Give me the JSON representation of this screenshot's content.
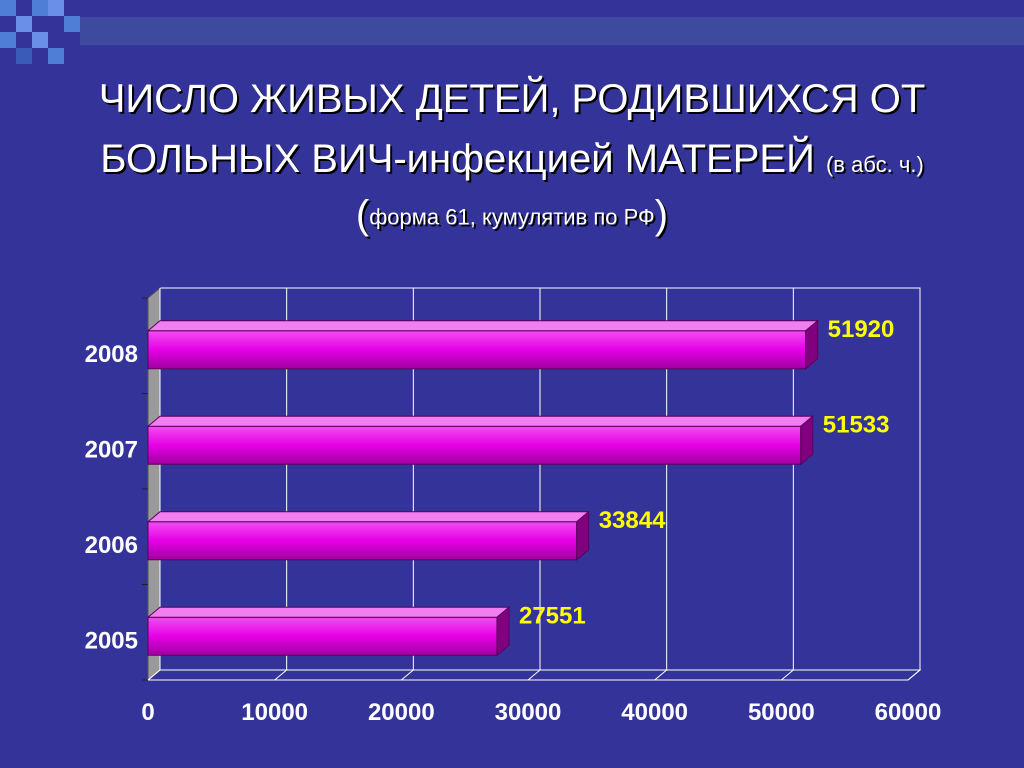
{
  "slide": {
    "title_line1": "ЧИСЛО ЖИВЫХ ДЕТЕЙ, РОДИВШИХСЯ ОТ",
    "title_line2": "БОЛЬНЫХ ВИЧ-инфекцией МАТЕРЕЙ",
    "title_note": "(в абс. ч.)",
    "subtitle_open": "(",
    "subtitle": "форма 61, кумулятив по РФ",
    "subtitle_close": ")"
  },
  "colors": {
    "background": "#333399",
    "bar_fill": "#e600e6",
    "bar_top": "#f27ff2",
    "bar_side": "#800080",
    "value_label": "#ffff00",
    "grid": "#ffffff",
    "axis_text": "#ffffff"
  },
  "chart_data": {
    "type": "bar",
    "orientation": "horizontal",
    "categories": [
      "2005",
      "2006",
      "2007",
      "2008"
    ],
    "values": [
      27551,
      33844,
      51533,
      51920
    ],
    "data_labels": [
      "27551",
      "33844",
      "51533",
      "51920"
    ],
    "x_ticks": [
      "0",
      "10000",
      "20000",
      "30000",
      "40000",
      "50000",
      "60000"
    ],
    "xlim": [
      0,
      60000
    ],
    "grid": true,
    "legend": false
  }
}
